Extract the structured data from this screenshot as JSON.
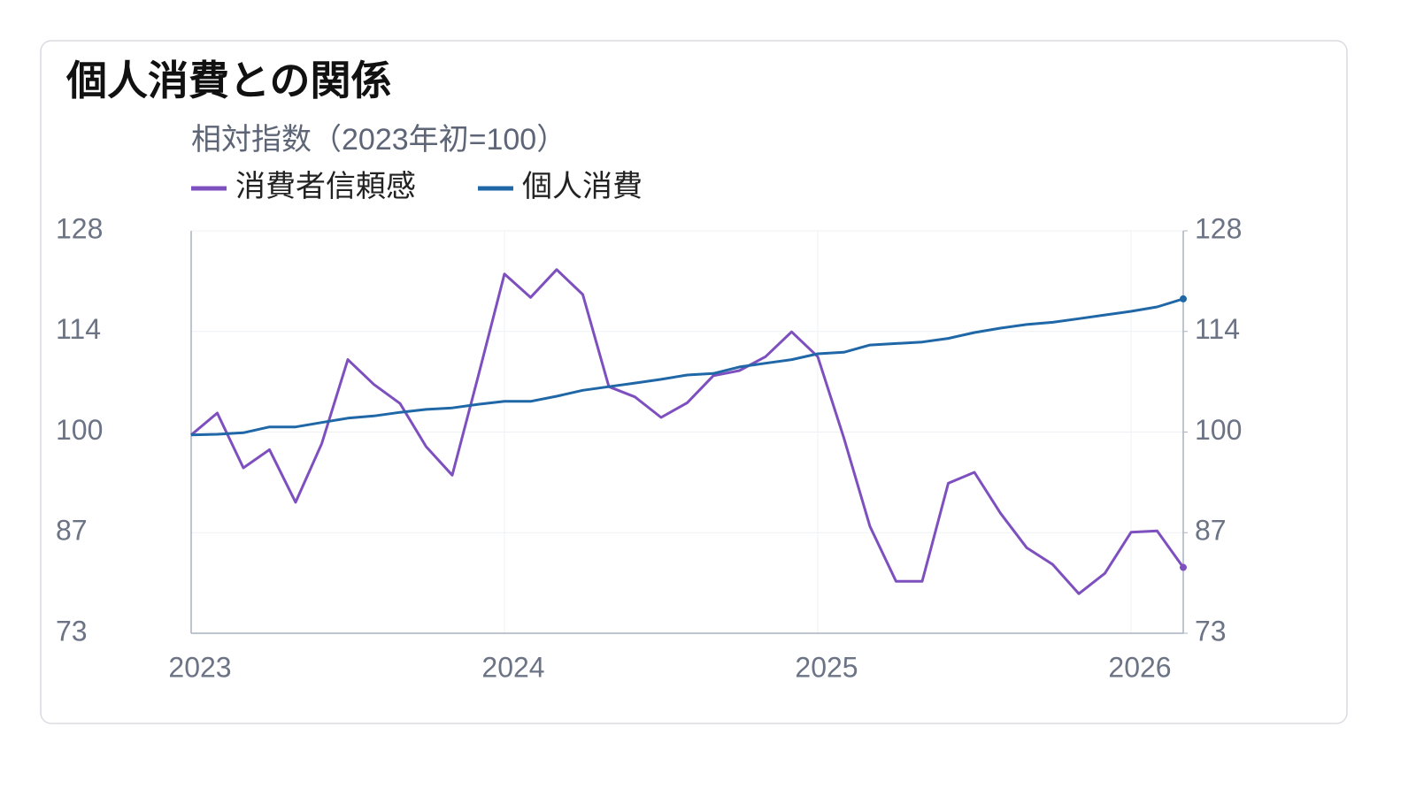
{
  "chart_data": {
    "type": "line",
    "title": "個人消費との関係",
    "subtitle": "相対指数（2023年初=100）",
    "categories": [
      "2023",
      null,
      null,
      null,
      null,
      null,
      null,
      null,
      null,
      null,
      null,
      null,
      "2024",
      null,
      null,
      null,
      null,
      null,
      null,
      null,
      null,
      null,
      null,
      null,
      "2025",
      null,
      null,
      null,
      null,
      null,
      null,
      null,
      null,
      null,
      null,
      null,
      "2026",
      null,
      null
    ],
    "series": [
      {
        "name": "消費者信頼感",
        "color": "#7e4fbf",
        "values": [
          100.1,
          103.1,
          95.6,
          98.1,
          90.9,
          98.9,
          110.4,
          107.0,
          104.4,
          98.5,
          94.6,
          108.2,
          122.1,
          118.9,
          122.7,
          119.3,
          106.7,
          105.3,
          102.5,
          104.5,
          108.2,
          108.9,
          110.8,
          114.2,
          110.8,
          99.7,
          87.6,
          80.1,
          80.1,
          93.5,
          95.0,
          89.4,
          84.7,
          82.4,
          78.4,
          81.2,
          86.8,
          87.0,
          82.0
        ]
      },
      {
        "name": "個人消費",
        "color": "#1f67a6",
        "axis": "y2",
        "values": [
          100.1,
          100.2,
          100.4,
          101.2,
          101.2,
          101.8,
          102.4,
          102.7,
          103.2,
          103.6,
          103.8,
          104.3,
          104.7,
          104.7,
          105.4,
          106.2,
          106.7,
          107.2,
          107.7,
          108.3,
          108.5,
          109.4,
          109.9,
          110.4,
          111.2,
          111.4,
          112.4,
          112.6,
          112.8,
          113.3,
          114.1,
          114.7,
          115.2,
          115.5,
          116.0,
          116.5,
          117.0,
          117.6,
          118.7
        ]
      }
    ],
    "ylim": [
      73,
      128
    ],
    "yticks": [
      73,
      {
        "value": 86.75,
        "label": "87"
      },
      {
        "value": 100.5,
        "label": "100"
      },
      {
        "value": 114.25,
        "label": "114"
      },
      128
    ],
    "y2lim": [
      73,
      128
    ],
    "y2ticks": [
      73,
      {
        "value": 86.75,
        "label": "87"
      },
      {
        "value": 100.5,
        "label": "100"
      },
      {
        "value": 114.25,
        "label": "114"
      },
      128
    ],
    "grid": true,
    "legend": "top-left"
  }
}
